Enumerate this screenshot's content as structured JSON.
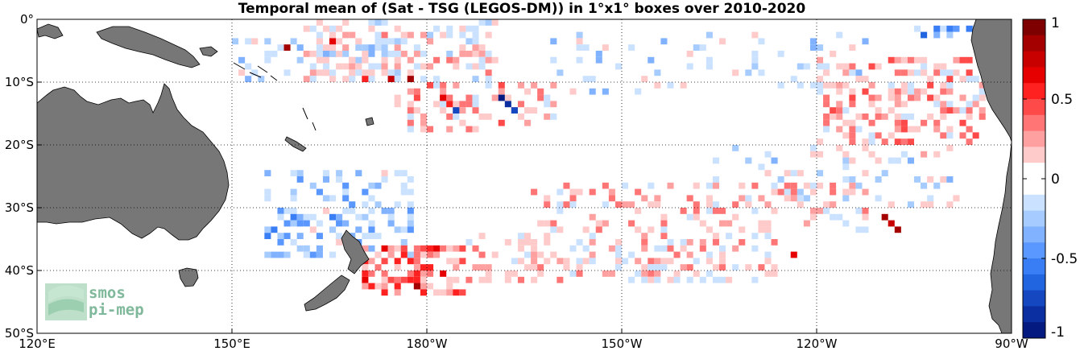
{
  "title": "Temporal mean of (Sat - TSG (LEGOS-DM)) in 1°x1° boxes over 2010-2020",
  "map": {
    "lon_range": [
      120,
      270
    ],
    "lat_range": [
      -50,
      0
    ],
    "lon_ticks": [
      {
        "lon": 120,
        "label": "120°E"
      },
      {
        "lon": 150,
        "label": "150°E"
      },
      {
        "lon": 180,
        "label": "180°W"
      },
      {
        "lon": 210,
        "label": "150°W"
      },
      {
        "lon": 240,
        "label": "120°W"
      },
      {
        "lon": 270,
        "label": "90°W"
      }
    ],
    "lat_ticks": [
      {
        "lat": 0,
        "label": "0°"
      },
      {
        "lat": -10,
        "label": "10°S"
      },
      {
        "lat": -20,
        "label": "20°S"
      },
      {
        "lat": -30,
        "label": "30°S"
      },
      {
        "lat": -40,
        "label": "40°S"
      },
      {
        "lat": -50,
        "label": "50°S"
      }
    ],
    "grid": true,
    "land_color": "#777777"
  },
  "colorbar": {
    "range": [
      -1,
      1
    ],
    "tick_labels": [
      {
        "value": 1,
        "label": "1"
      },
      {
        "value": 0.5,
        "label": "0.5"
      },
      {
        "value": 0,
        "label": "0"
      },
      {
        "value": -0.5,
        "label": "-0.5"
      },
      {
        "value": -1,
        "label": "-1"
      }
    ],
    "colors": [
      "#7f0000",
      "#a50000",
      "#c80000",
      "#e60000",
      "#ff2020",
      "#ff4a4a",
      "#ff7575",
      "#ffa0a0",
      "#ffcaca",
      "#ffffff",
      "#ffffff",
      "#cae2ff",
      "#a6cbff",
      "#80b2ff",
      "#5a98ff",
      "#3a7ef5",
      "#2166e0",
      "#1548c0",
      "#0b2fa0",
      "#051a80"
    ]
  },
  "logo": {
    "line1": "smos",
    "line2": "pi-mep"
  },
  "chart_data": {
    "type": "heatmap",
    "title": "Temporal mean of (Sat - TSG (LEGOS-DM)) in 1°x1° boxes over 2010-2020",
    "vmin": -1,
    "vmax": 1,
    "bands": [
      {
        "lon0": 161,
        "lat0": -10,
        "lon1": 191,
        "lat1": 0,
        "density": 0.42,
        "bias": 0.05
      },
      {
        "lon0": 175,
        "lat0": -18,
        "lon1": 200,
        "lat1": -10,
        "density": 0.35,
        "bias": 0.15
      },
      {
        "lon0": 198,
        "lat0": -12,
        "lon1": 248,
        "lat1": -2,
        "density": 0.1,
        "bias": -0.1
      },
      {
        "lon0": 240,
        "lat0": -20,
        "lon1": 266,
        "lat1": -6,
        "density": 0.38,
        "bias": 0.2
      },
      {
        "lon0": 224,
        "lat0": -30,
        "lon1": 262,
        "lat1": -20,
        "density": 0.18,
        "bias": -0.05
      },
      {
        "lon0": 196,
        "lat0": -34,
        "lon1": 248,
        "lat1": -26,
        "density": 0.28,
        "bias": 0.12
      },
      {
        "lon0": 186,
        "lat0": -42,
        "lon1": 234,
        "lat1": -34,
        "density": 0.35,
        "bias": 0.1
      },
      {
        "lon0": 155,
        "lat0": -38,
        "lon1": 178,
        "lat1": -24,
        "density": 0.33,
        "bias": -0.25
      },
      {
        "lon0": 170,
        "lat0": -44,
        "lon1": 186,
        "lat1": -36,
        "density": 0.5,
        "bias": 0.35
      },
      {
        "lon0": 150,
        "lat0": -10,
        "lon1": 176,
        "lat1": -3,
        "density": 0.28,
        "bias": -0.1
      },
      {
        "lon0": 255,
        "lat0": -3,
        "lon1": 265,
        "lat1": -1,
        "density": 0.4,
        "bias": -0.4
      }
    ],
    "highlights": [
      {
        "lon": 191,
        "lat": -12,
        "value": -1.0
      },
      {
        "lon": 192,
        "lat": -13,
        "value": -0.8
      },
      {
        "lon": 193,
        "lat": -14,
        "value": -0.7
      },
      {
        "lon": 182,
        "lat": -12,
        "value": 0.7
      },
      {
        "lon": 183,
        "lat": -13,
        "value": 0.6
      },
      {
        "lon": 184,
        "lat": -14,
        "value": -0.7
      },
      {
        "lon": 177,
        "lat": -9,
        "value": 0.8
      },
      {
        "lon": 174,
        "lat": -9,
        "value": 0.75
      },
      {
        "lon": 170,
        "lat": -9,
        "value": 0.6
      },
      {
        "lon": 158,
        "lat": -4,
        "value": 0.8
      },
      {
        "lon": 165,
        "lat": -3,
        "value": 0.7
      },
      {
        "lon": 250,
        "lat": -31,
        "value": 0.85
      },
      {
        "lon": 251,
        "lat": -32,
        "value": 0.75
      },
      {
        "lon": 252,
        "lat": -33,
        "value": 0.8
      },
      {
        "lon": 236,
        "lat": -37,
        "value": 0.7
      },
      {
        "lon": 178,
        "lat": -42,
        "value": 0.85
      },
      {
        "lon": 179,
        "lat": -43,
        "value": 0.6
      },
      {
        "lon": 180,
        "lat": -39,
        "value": 0.6
      },
      {
        "lon": 182,
        "lat": -40,
        "value": 0.7
      },
      {
        "lon": 267,
        "lat": -8,
        "value": 0.4
      },
      {
        "lon": 258,
        "lat": -1,
        "value": -0.5
      },
      {
        "lon": 263,
        "lat": -1,
        "value": -0.5
      }
    ]
  }
}
